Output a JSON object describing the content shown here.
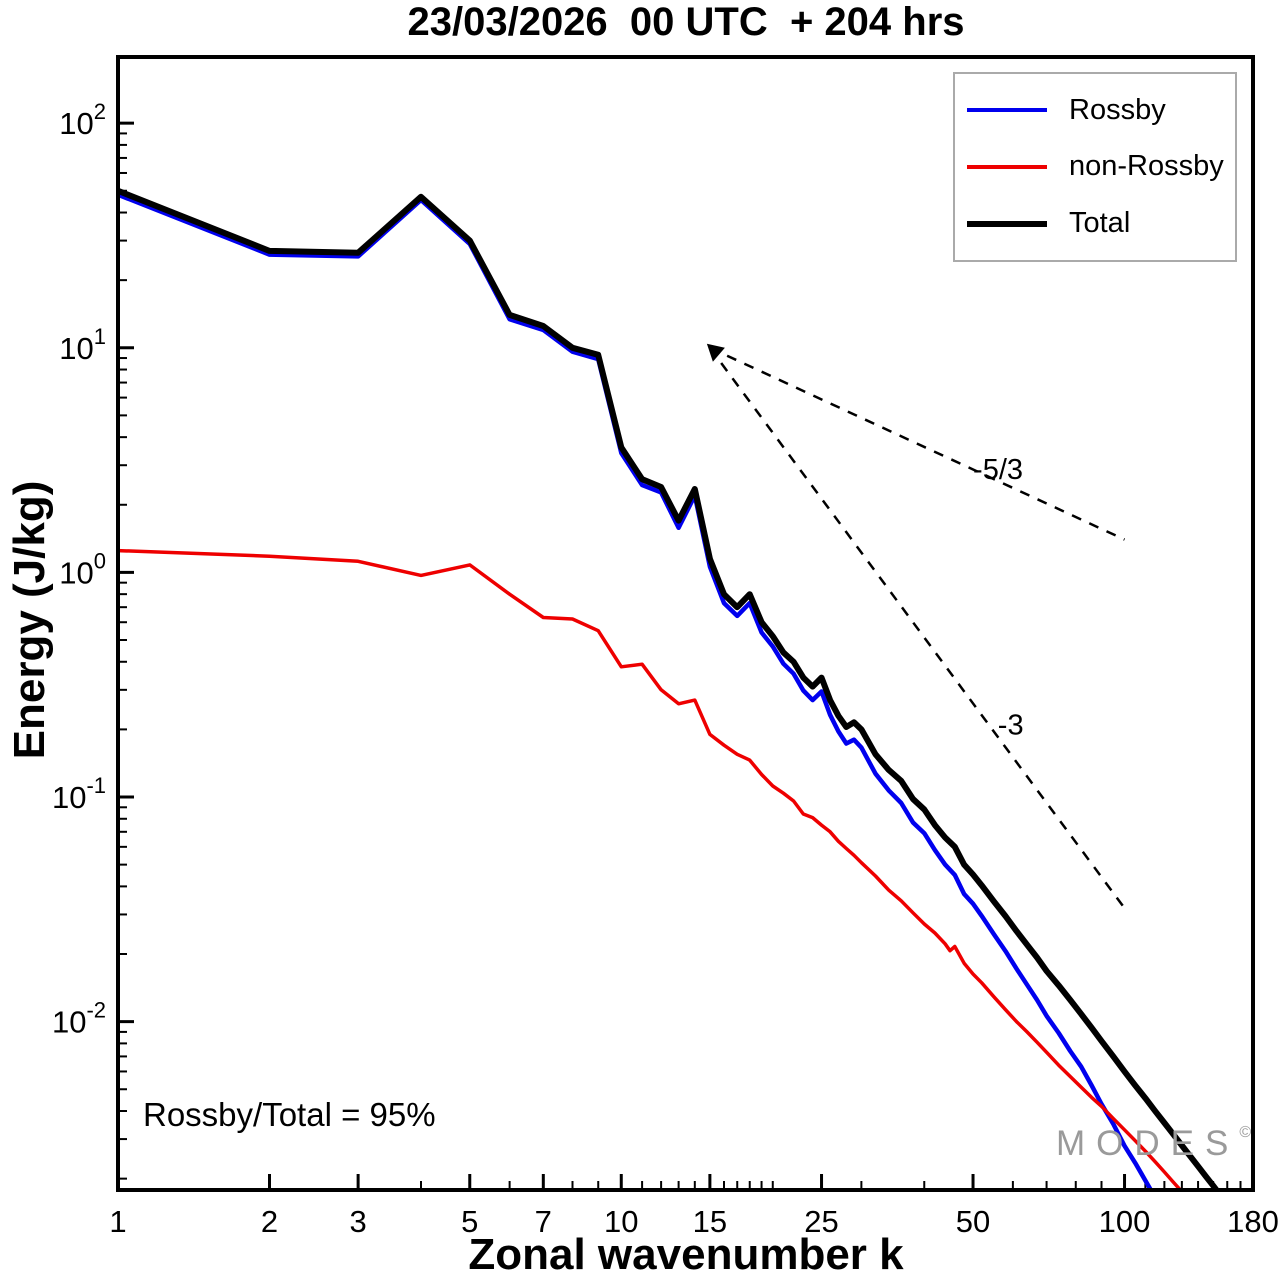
{
  "title": "23/03/2026  00 UTC  + 204 hrs",
  "annotation": "Rossby/Total = 95%",
  "watermark": {
    "text": "MODES",
    "symbol": "©"
  },
  "legend": {
    "items": [
      {
        "label": "Rossby",
        "color": "#0000ee",
        "thickness": 4
      },
      {
        "label": "non-Rossby",
        "color": "#ee0000",
        "thickness": 4
      },
      {
        "label": "Total",
        "color": "#000000",
        "thickness": 6
      }
    ]
  },
  "chart_data": {
    "type": "line",
    "title": "23/03/2026  00 UTC  + 204 hrs",
    "xlabel": "Zonal wavenumber k",
    "ylabel": "Energy (J/kg)",
    "xscale": "log",
    "yscale": "log",
    "xlim": [
      1,
      180
    ],
    "ylim": [
      0.00178,
      197
    ],
    "x_major_ticks": [
      1,
      2,
      3,
      5,
      7,
      10,
      15,
      25,
      50,
      100,
      180
    ],
    "x_minor_ticks": [
      4,
      6,
      8,
      9,
      11,
      12,
      13,
      14,
      16,
      17,
      18,
      19,
      20,
      30,
      40,
      60,
      70,
      80,
      90,
      110,
      120,
      130,
      140,
      150,
      160,
      170
    ],
    "y_tick_exponents": [
      2,
      1,
      0,
      -1,
      -2
    ],
    "grid": false,
    "legend_position": "upper right",
    "series": [
      {
        "name": "Rossby",
        "color": "#0000ee",
        "width": 4.5,
        "k": [
          1,
          2,
          3,
          4,
          5,
          6,
          7,
          8,
          9,
          10,
          11,
          12,
          13,
          14,
          15,
          16,
          17,
          18,
          19,
          20,
          21,
          22,
          23,
          24,
          25,
          26,
          27,
          28,
          29,
          30,
          32,
          34,
          36,
          38,
          40,
          42,
          44,
          46,
          48,
          50,
          52,
          55,
          58,
          61,
          64,
          67,
          70,
          74,
          78,
          82,
          86,
          90,
          95,
          100,
          105,
          110,
          115,
          120,
          125,
          130,
          135,
          140,
          145,
          150,
          155,
          160
        ],
        "e": [
          48,
          26,
          25.5,
          45.5,
          29,
          13.4,
          12,
          9.6,
          8.9,
          3.4,
          2.45,
          2.27,
          1.58,
          2.2,
          1.06,
          0.73,
          0.64,
          0.73,
          0.54,
          0.468,
          0.392,
          0.354,
          0.298,
          0.27,
          0.295,
          0.232,
          0.196,
          0.173,
          0.18,
          0.166,
          0.127,
          0.107,
          0.094,
          0.077,
          0.069,
          0.058,
          0.05,
          0.045,
          0.037,
          0.0335,
          0.0296,
          0.0245,
          0.0206,
          0.0172,
          0.0146,
          0.0125,
          0.0106,
          0.0089,
          0.0074,
          0.0063,
          0.0052,
          0.0043,
          0.0035,
          0.0028,
          0.00235,
          0.00196,
          0.00165,
          0.00138,
          0.00118,
          0.00101,
          0.00087,
          0.00075,
          0.00065,
          0.00056,
          0.00049,
          0.00043
        ]
      },
      {
        "name": "non-Rossby",
        "color": "#ee0000",
        "width": 3.5,
        "k": [
          1,
          2,
          3,
          4,
          5,
          6,
          7,
          8,
          9,
          10,
          11,
          12,
          13,
          14,
          15,
          16,
          17,
          18,
          19,
          20,
          21,
          22,
          23,
          24,
          25,
          26,
          27,
          28,
          29,
          30,
          32,
          34,
          36,
          38,
          40,
          42,
          44,
          45,
          46,
          48,
          50,
          52,
          55,
          58,
          61,
          64,
          67,
          70,
          74,
          78,
          82,
          86,
          90,
          95,
          100,
          105,
          110,
          115,
          120,
          125,
          130,
          135,
          140,
          145,
          150
        ],
        "e": [
          1.25,
          1.18,
          1.12,
          0.97,
          1.08,
          0.8,
          0.63,
          0.62,
          0.55,
          0.38,
          0.39,
          0.3,
          0.26,
          0.27,
          0.19,
          0.17,
          0.155,
          0.146,
          0.126,
          0.112,
          0.104,
          0.096,
          0.084,
          0.081,
          0.075,
          0.07,
          0.0635,
          0.059,
          0.055,
          0.051,
          0.0445,
          0.0385,
          0.0345,
          0.0305,
          0.0272,
          0.0248,
          0.0222,
          0.0207,
          0.0216,
          0.0182,
          0.0163,
          0.0149,
          0.0129,
          0.0113,
          0.01,
          0.009,
          0.0081,
          0.0073,
          0.0064,
          0.0057,
          0.0051,
          0.0046,
          0.0042,
          0.0037,
          0.0033,
          0.00295,
          0.00265,
          0.00238,
          0.00214,
          0.00193,
          0.00175,
          0.00159,
          0.00145,
          0.00132,
          0.00121
        ]
      },
      {
        "name": "Total",
        "color": "#000000",
        "width": 6,
        "k": [
          1,
          2,
          3,
          4,
          5,
          6,
          7,
          8,
          9,
          10,
          11,
          12,
          13,
          14,
          15,
          16,
          17,
          18,
          19,
          20,
          21,
          22,
          23,
          24,
          25,
          26,
          27,
          28,
          29,
          30,
          32,
          34,
          36,
          38,
          40,
          42,
          44,
          46,
          48,
          50,
          52,
          55,
          58,
          61,
          64,
          67,
          70,
          74,
          78,
          82,
          86,
          90,
          95,
          100,
          105,
          110,
          115,
          120,
          125,
          130,
          135,
          140,
          145,
          150,
          155,
          160
        ],
        "e": [
          50,
          27,
          26.5,
          47,
          30,
          14,
          12.5,
          10,
          9.3,
          3.6,
          2.6,
          2.4,
          1.7,
          2.35,
          1.15,
          0.8,
          0.7,
          0.8,
          0.6,
          0.52,
          0.44,
          0.4,
          0.34,
          0.31,
          0.34,
          0.27,
          0.23,
          0.205,
          0.215,
          0.2,
          0.155,
          0.132,
          0.118,
          0.098,
          0.088,
          0.075,
          0.066,
          0.06,
          0.05,
          0.0452,
          0.0405,
          0.0343,
          0.0295,
          0.0253,
          0.022,
          0.0193,
          0.0168,
          0.0145,
          0.0125,
          0.0108,
          0.0094,
          0.0082,
          0.007,
          0.006,
          0.0052,
          0.00456,
          0.004,
          0.00354,
          0.00315,
          0.00281,
          0.00252,
          0.00227,
          0.00205,
          0.00186,
          0.00169,
          0.00155
        ]
      }
    ],
    "reference_lines": [
      {
        "label": "-5/3",
        "x": [
          15,
          100
        ],
        "y": [
          10,
          1.4
        ],
        "label_x": 50,
        "label_y": 2.6
      },
      {
        "label": "-3",
        "x": [
          15,
          100
        ],
        "y": [
          10,
          0.032
        ],
        "label_x": 56,
        "label_y": 0.19
      }
    ],
    "annotations": [
      "Rossby/Total = 95%"
    ]
  }
}
